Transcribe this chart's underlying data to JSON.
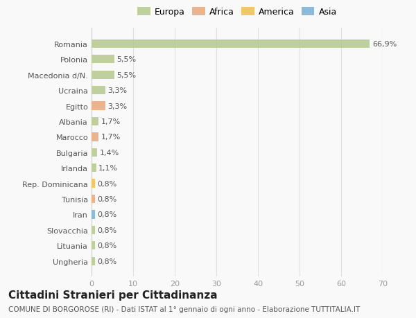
{
  "categories": [
    "Romania",
    "Polonia",
    "Macedonia d/N.",
    "Ucraina",
    "Egitto",
    "Albania",
    "Marocco",
    "Bulgaria",
    "Irlanda",
    "Rep. Dominicana",
    "Tunisia",
    "Iran",
    "Slovacchia",
    "Lituania",
    "Ungheria"
  ],
  "values": [
    66.9,
    5.5,
    5.5,
    3.3,
    3.3,
    1.7,
    1.7,
    1.4,
    1.1,
    0.8,
    0.8,
    0.8,
    0.8,
    0.8,
    0.8
  ],
  "labels": [
    "66,9%",
    "5,5%",
    "5,5%",
    "3,3%",
    "3,3%",
    "1,7%",
    "1,7%",
    "1,4%",
    "1,1%",
    "0,8%",
    "0,8%",
    "0,8%",
    "0,8%",
    "0,8%",
    "0,8%"
  ],
  "colors": [
    "#b5c98e",
    "#b5c98e",
    "#b5c98e",
    "#b5c98e",
    "#e8a87c",
    "#b5c98e",
    "#e8a87c",
    "#b5c98e",
    "#b5c98e",
    "#f0c050",
    "#e8a87c",
    "#7bafd4",
    "#b5c98e",
    "#b5c98e",
    "#b5c98e"
  ],
  "legend_labels": [
    "Europa",
    "Africa",
    "America",
    "Asia"
  ],
  "legend_colors": [
    "#b5c98e",
    "#e8a87c",
    "#f0c050",
    "#7bafd4"
  ],
  "xlim": [
    0,
    70
  ],
  "xticks": [
    0,
    10,
    20,
    30,
    40,
    50,
    60,
    70
  ],
  "title": "Cittadini Stranieri per Cittadinanza",
  "subtitle": "COMUNE DI BORGOROSE (RI) - Dati ISTAT al 1° gennaio di ogni anno - Elaborazione TUTTITALIA.IT",
  "bg_color": "#f9f9f9",
  "grid_color": "#e0e0e0",
  "bar_height": 0.55,
  "label_fontsize": 8,
  "tick_fontsize": 8,
  "title_fontsize": 11,
  "subtitle_fontsize": 7.5,
  "legend_fontsize": 9
}
